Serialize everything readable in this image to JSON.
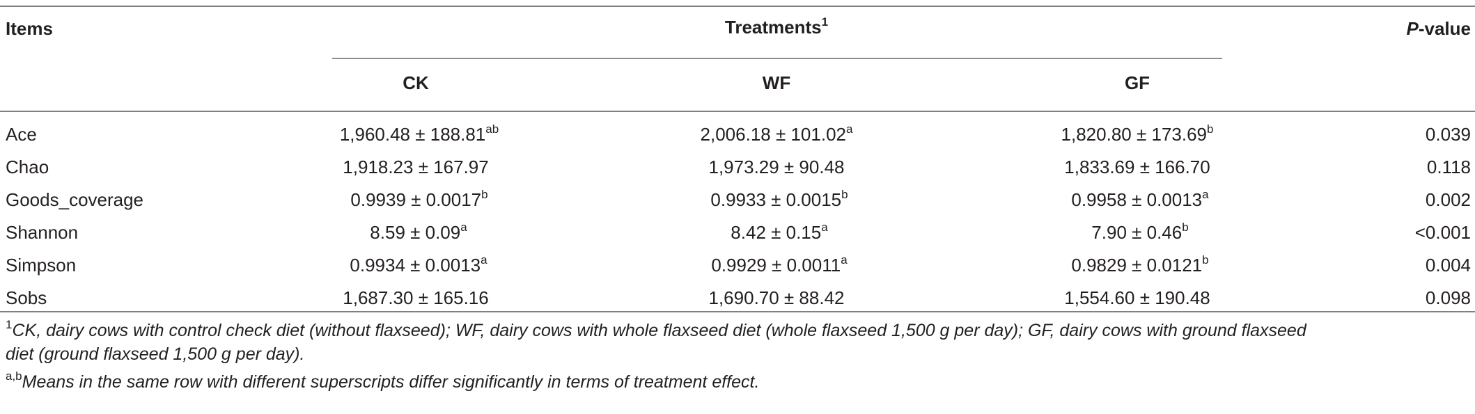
{
  "header": {
    "items_label": "Items",
    "treatments_label": "Treatments",
    "treatments_sup": "1",
    "pvalue_italic": "P",
    "pvalue_rest": "-value",
    "groups": [
      "CK",
      "WF",
      "GF"
    ]
  },
  "rows": [
    {
      "item": "Ace",
      "ck": "1,960.48 ± 188.81",
      "ck_sup": "ab",
      "wf": "2,006.18 ± 101.02",
      "wf_sup": "a",
      "gf": "1,820.80 ± 173.69",
      "gf_sup": "b",
      "p": "0.039"
    },
    {
      "item": "Chao",
      "ck": "1,918.23 ± 167.97",
      "ck_sup": "",
      "wf": "1,973.29 ± 90.48",
      "wf_sup": "",
      "gf": "1,833.69 ± 166.70",
      "gf_sup": "",
      "p": "0.118"
    },
    {
      "item": "Goods_coverage",
      "ck": "0.9939 ± 0.0017",
      "ck_sup": "b",
      "wf": "0.9933 ± 0.0015",
      "wf_sup": "b",
      "gf": "0.9958 ± 0.0013",
      "gf_sup": "a",
      "p": "0.002"
    },
    {
      "item": "Shannon",
      "ck": "8.59 ± 0.09",
      "ck_sup": "a",
      "wf": "8.42 ± 0.15",
      "wf_sup": "a",
      "gf": "7.90 ± 0.46",
      "gf_sup": "b",
      "p": "<0.001"
    },
    {
      "item": "Simpson",
      "ck": "0.9934 ± 0.0013",
      "ck_sup": "a",
      "wf": "0.9929 ± 0.0011",
      "wf_sup": "a",
      "gf": "0.9829 ± 0.0121",
      "gf_sup": "b",
      "p": "0.004"
    },
    {
      "item": "Sobs",
      "ck": "1,687.30 ± 165.16",
      "ck_sup": "",
      "wf": "1,690.70 ± 88.42",
      "wf_sup": "",
      "gf": "1,554.60 ± 190.48",
      "gf_sup": "",
      "p": "0.098"
    }
  ],
  "footnotes": {
    "note1_marker": "1",
    "note1_line1": "CK, dairy cows with control check diet (without flaxseed); WF, dairy cows with whole flaxseed diet (whole flaxseed 1,500 g per day); GF, dairy cows with ground flaxseed",
    "note1_line2": "diet (ground flaxseed 1,500 g per day).",
    "note2_marker": "a,b",
    "note2_text": "Means in the same row with different superscripts differ significantly in terms of treatment effect."
  }
}
